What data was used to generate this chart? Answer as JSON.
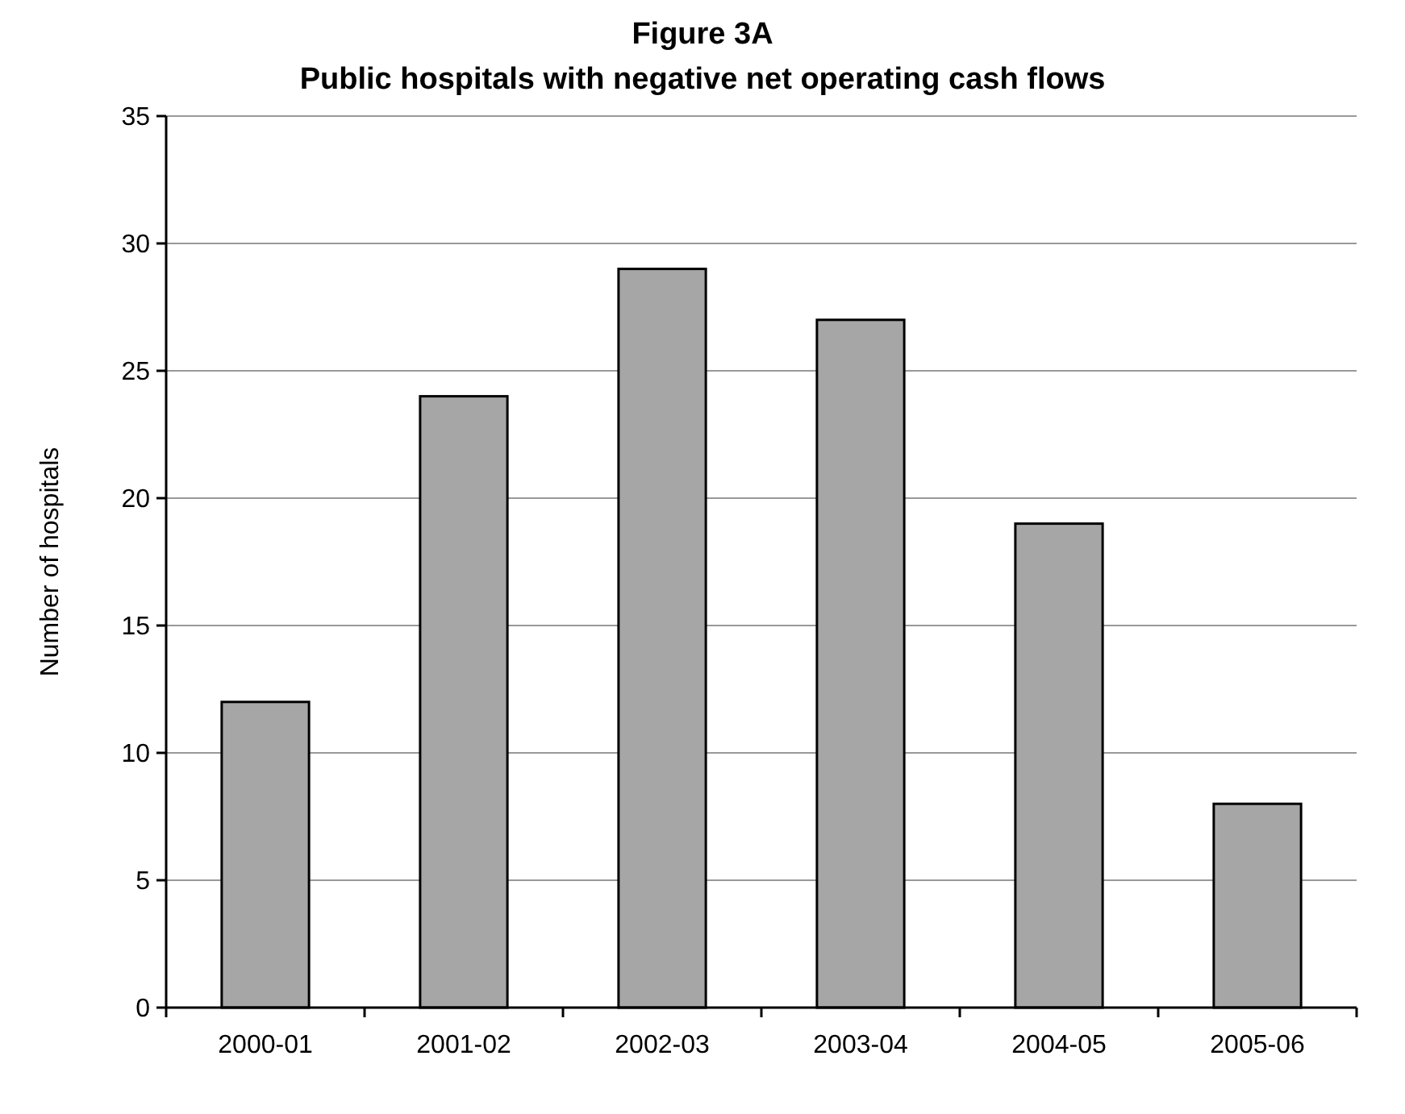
{
  "chart_data": {
    "type": "bar",
    "title": "Figure 3A",
    "subtitle": "Public hospitals with negative net operating cash flows",
    "ylabel": "Number of hospitals",
    "categories": [
      "2000-01",
      "2001-02",
      "2002-03",
      "2003-04",
      "2004-05",
      "2005-06"
    ],
    "values": [
      12,
      24,
      29,
      27,
      19,
      8
    ],
    "color": "#a6a6a6",
    "ylim": [
      0,
      35
    ],
    "yticks": [
      0,
      5,
      10,
      15,
      20,
      25,
      30,
      35
    ],
    "grid": "y"
  }
}
